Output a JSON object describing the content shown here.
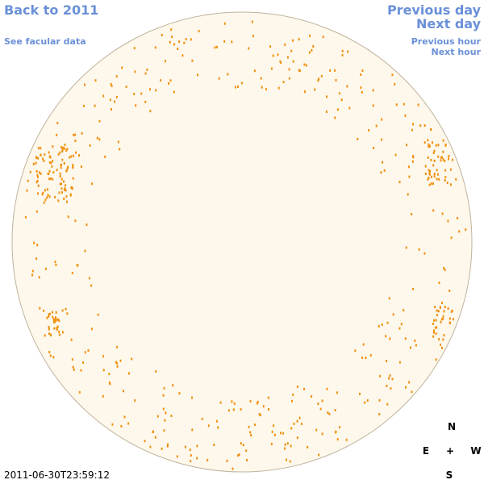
{
  "nav": {
    "back": "Back to 2011",
    "facular": "See facular data",
    "previous_day": "Previous day",
    "next_day": "Next day",
    "previous_hour": "Previous hour",
    "next_hour": "Next hour"
  },
  "timestamp": "2011-06-30T23:59:12",
  "compass": {
    "north": "N",
    "east": "E",
    "center": "+",
    "west": "W",
    "south": "S"
  }
}
